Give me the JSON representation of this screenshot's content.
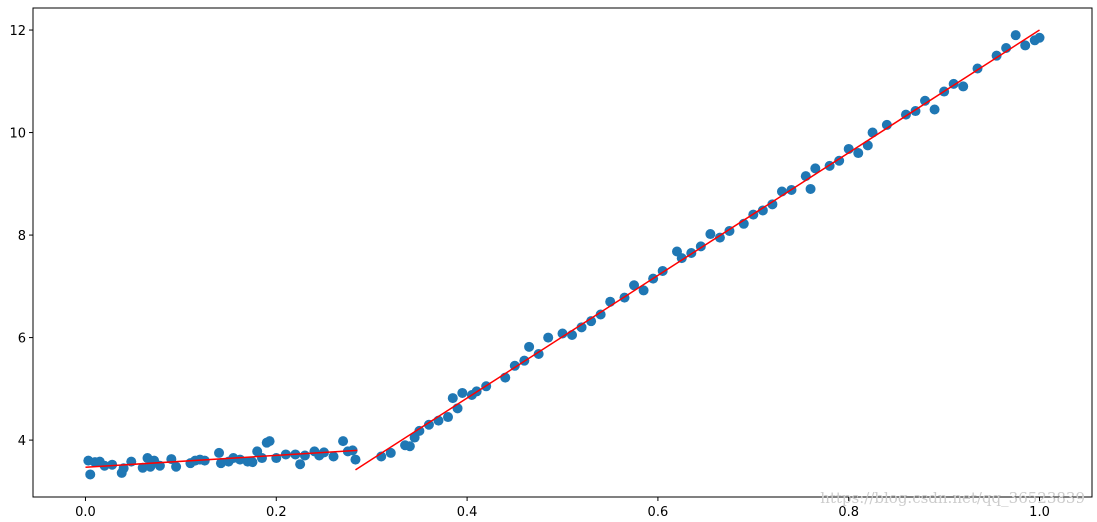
{
  "chart_data": {
    "type": "scatter",
    "xlim": [
      -0.055,
      1.055
    ],
    "ylim": [
      2.89,
      12.43
    ],
    "xticks": [
      {
        "value": 0,
        "label": "0.0"
      },
      0.2,
      0.4,
      0.6,
      0.8,
      {
        "value": 1,
        "label": "1.0"
      }
    ],
    "yticks": [
      4,
      6,
      8,
      10,
      12
    ],
    "watermark": "https://blog.csdn.net/qq_36523839",
    "series": [
      {
        "type": "scatter",
        "color": "#1f77b4",
        "x": [
          0.003,
          0.005,
          0.01,
          0.015,
          0.02,
          0.028,
          0.038,
          0.04,
          0.048,
          0.06,
          0.065,
          0.068,
          0.072,
          0.078,
          0.09,
          0.095,
          0.11,
          0.115,
          0.12,
          0.125,
          0.14,
          0.142,
          0.15,
          0.155,
          0.162,
          0.17,
          0.175,
          0.18,
          0.185,
          0.19,
          0.193,
          0.2,
          0.21,
          0.22,
          0.225,
          0.23,
          0.24,
          0.245,
          0.25,
          0.26,
          0.27,
          0.275,
          0.28,
          0.283,
          0.31,
          0.32,
          0.335,
          0.34,
          0.345,
          0.35,
          0.36,
          0.37,
          0.38,
          0.385,
          0.39,
          0.395,
          0.405,
          0.41,
          0.42,
          0.44,
          0.45,
          0.46,
          0.465,
          0.475,
          0.485,
          0.5,
          0.51,
          0.52,
          0.53,
          0.54,
          0.55,
          0.565,
          0.575,
          0.585,
          0.595,
          0.605,
          0.62,
          0.625,
          0.635,
          0.645,
          0.655,
          0.665,
          0.675,
          0.69,
          0.7,
          0.71,
          0.72,
          0.73,
          0.74,
          0.755,
          0.76,
          0.765,
          0.78,
          0.79,
          0.8,
          0.81,
          0.82,
          0.825,
          0.84,
          0.86,
          0.87,
          0.88,
          0.89,
          0.9,
          0.91,
          0.92,
          0.935,
          0.955,
          0.965,
          0.975,
          0.985,
          0.995,
          1.0
        ],
        "values": [
          3.6,
          3.33,
          3.57,
          3.58,
          3.5,
          3.52,
          3.36,
          3.45,
          3.58,
          3.46,
          3.65,
          3.48,
          3.6,
          3.5,
          3.63,
          3.48,
          3.55,
          3.6,
          3.62,
          3.6,
          3.75,
          3.55,
          3.58,
          3.65,
          3.62,
          3.58,
          3.57,
          3.78,
          3.65,
          3.95,
          3.98,
          3.65,
          3.72,
          3.72,
          3.53,
          3.7,
          3.78,
          3.7,
          3.76,
          3.68,
          3.98,
          3.78,
          3.8,
          3.62,
          3.68,
          3.75,
          3.9,
          3.88,
          4.05,
          4.18,
          4.3,
          4.38,
          4.45,
          4.82,
          4.62,
          4.92,
          4.88,
          4.95,
          5.05,
          5.22,
          5.45,
          5.55,
          5.82,
          5.68,
          6.0,
          6.08,
          6.05,
          6.2,
          6.32,
          6.45,
          6.7,
          6.78,
          7.02,
          6.92,
          7.15,
          7.3,
          7.68,
          7.55,
          7.65,
          7.78,
          8.02,
          7.95,
          8.08,
          8.22,
          8.4,
          8.48,
          8.6,
          8.85,
          8.88,
          9.15,
          8.9,
          9.3,
          9.35,
          9.45,
          9.68,
          9.6,
          9.75,
          10.0,
          10.15,
          10.35,
          10.42,
          10.62,
          10.45,
          10.8,
          10.95,
          10.9,
          11.25,
          11.5,
          11.65,
          11.9,
          11.7,
          11.8,
          11.85
        ]
      },
      {
        "type": "line",
        "color": "#ff0000",
        "x": [
          0,
          0.285
        ],
        "values": [
          3.47,
          3.8
        ]
      },
      {
        "type": "line",
        "color": "#ff0000",
        "x": [
          0.283,
          1.0
        ],
        "values": [
          3.42,
          12.0
        ]
      }
    ]
  }
}
